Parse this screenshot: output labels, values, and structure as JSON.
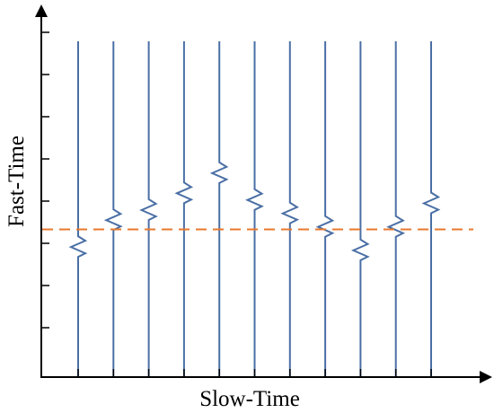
{
  "labels": {
    "x_axis": "Slow-Time",
    "y_axis": "Fast-Time"
  },
  "colors": {
    "trace": "#4a6fa5",
    "reference_line": "#e8782c",
    "axis": "#000000"
  },
  "diagram": {
    "trace_count": 11,
    "echo_offsets": [
      0.05,
      -0.03,
      -0.06,
      -0.11,
      -0.17,
      -0.09,
      -0.05,
      -0.01,
      0.06,
      -0.01,
      -0.08
    ],
    "reference_level": 0.56,
    "y_tick_count": 8,
    "x_tick_count": 11
  }
}
